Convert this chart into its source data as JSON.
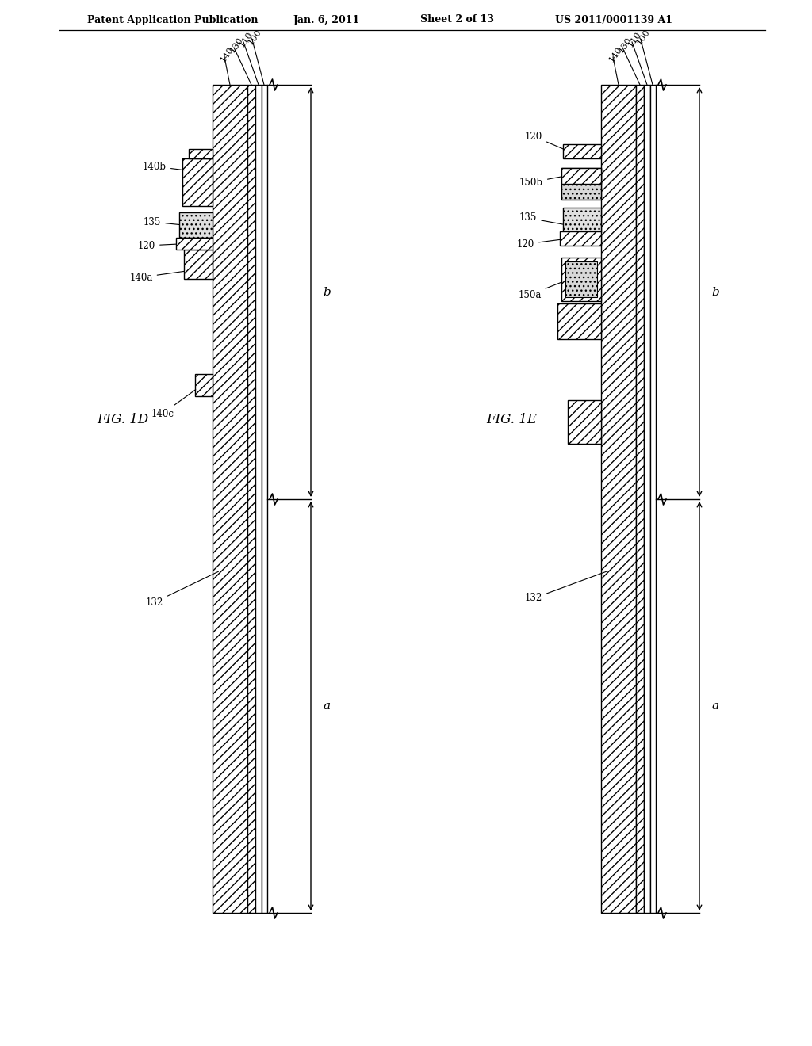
{
  "bg_color": "#ffffff",
  "line_color": "#000000",
  "header_text": "Patent Application Publication",
  "header_date": "Jan. 6, 2011",
  "header_sheet": "Sheet 2 of 13",
  "header_patent": "US 2011/0001139 A1",
  "fig1d_label": "FIG. 1D",
  "fig1e_label": "FIG. 1E",
  "layer_labels": [
    "140",
    "130",
    "110",
    "100"
  ],
  "dim_labels": [
    "b",
    "a"
  ],
  "lw_main": 1.2,
  "lw_thin": 0.8
}
